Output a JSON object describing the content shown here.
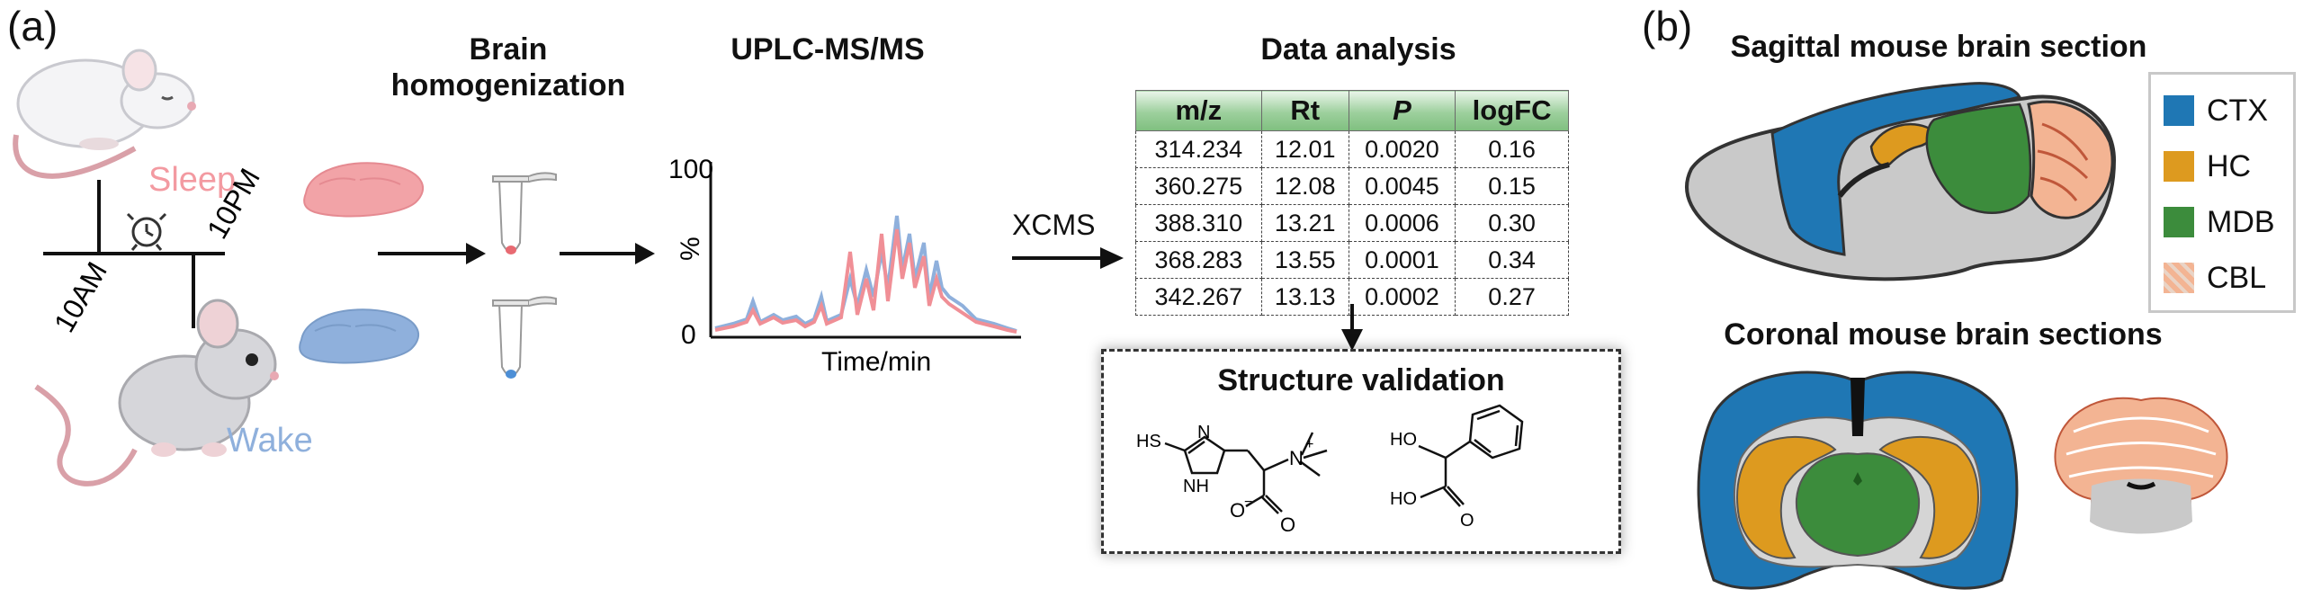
{
  "panel_a": {
    "label": "(a)",
    "sleep_label": "Sleep",
    "wake_label": "Wake",
    "time_am": "10AM",
    "time_pm": "10PM",
    "step_homogenization": "Brain homogenization",
    "step_uplc": "UPLC-MS/MS",
    "step_analysis": "Data analysis",
    "xcms_label": "XCMS",
    "validation_title": "Structure validation"
  },
  "chromatogram": {
    "y_max_label": "100",
    "y_min_label": "0",
    "y_axis_label": "%",
    "x_axis_label": "Time/min",
    "colors": {
      "sleep": "#f08f96",
      "wake": "#8fb0dc"
    }
  },
  "table": {
    "columns": [
      "m/z",
      "Rt",
      "P",
      "logFC"
    ],
    "rows": [
      [
        "314.234",
        "12.01",
        "0.0020",
        "0.16"
      ],
      [
        "360.275",
        "12.08",
        "0.0045",
        "0.15"
      ],
      [
        "388.310",
        "13.21",
        "0.0006",
        "0.30"
      ],
      [
        "368.283",
        "13.55",
        "0.0001",
        "0.34"
      ],
      [
        "342.267",
        "13.13",
        "0.0002",
        "0.27"
      ]
    ]
  },
  "molecules": {
    "mol1_labels": {
      "hs": "HS",
      "n": "N",
      "nh": "NH",
      "nplus": "N",
      "plus": "+",
      "o_minus": "O",
      "minus": "−",
      "o": "O"
    },
    "mol2_labels": {
      "ho_top": "HO",
      "ho_bottom": "HO",
      "o": "O"
    }
  },
  "panel_b": {
    "label": "(b)",
    "sagittal_title": "Sagittal mouse brain section",
    "coronal_title": "Coronal mouse brain sections",
    "legend": [
      {
        "label": "CTX",
        "color": "#1f77b4"
      },
      {
        "label": "HC",
        "color": "#dd9a1f"
      },
      {
        "label": "MDB",
        "color": "#3c8c3c"
      },
      {
        "label": "CBL",
        "color": "#f3b493"
      }
    ]
  }
}
